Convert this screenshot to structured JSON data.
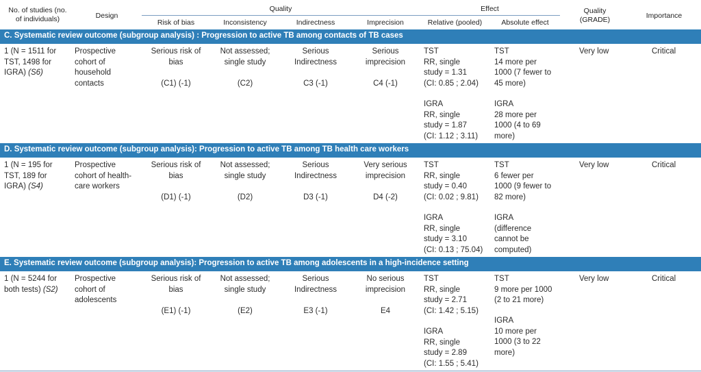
{
  "header": {
    "studies": [
      "No. of studies (no.",
      "of individuals)"
    ],
    "design": "Design",
    "quality": "Quality",
    "effect": "Effect",
    "risk_of_bias": "Risk of bias",
    "inconsistency": "Inconsistency",
    "indirectness": "Indirectness",
    "imprecision": "Imprecision",
    "relative": "Relative (pooled)",
    "absolute": "Absolute effect",
    "grade": [
      "Quality",
      "(GRADE)"
    ],
    "importance": "Importance"
  },
  "sections": [
    {
      "title": "C. Systematic review outcome (subgroup analysis) : Progression to active TB among contacts of TB cases",
      "studies": [
        "1 (N = 1511 for",
        "TST, 1498 for",
        "IGRA) "
      ],
      "studies_ref": "(S6)",
      "design": [
        "Prospective",
        "cohort of",
        "household",
        "contacts"
      ],
      "risk_of_bias": [
        "Serious risk of",
        "bias"
      ],
      "risk_code": "(C1) (-1)",
      "inconsistency": [
        "Not assessed;",
        "single study"
      ],
      "inconsistency_code": "(C2)",
      "indirectness": [
        "Serious",
        "Indirectness"
      ],
      "indirectness_code": "C3 (-1)",
      "imprecision": [
        "Serious",
        "imprecision"
      ],
      "imprecision_code": "C4 (-1)",
      "relative_tst": [
        "TST",
        "RR, single",
        "study = 1.31",
        "(CI: 0.85 ; 2.04)"
      ],
      "relative_igra": [
        "IGRA",
        "RR, single",
        "study = 1.87",
        "(CI: 1.12 ; 3.11)"
      ],
      "absolute_tst": [
        "TST",
        "14 more per",
        "1000 (7 fewer to",
        "45 more)"
      ],
      "absolute_igra": [
        "IGRA",
        "28 more per",
        "1000 (4 to 69",
        "more)"
      ],
      "grade": "Very low",
      "importance": "Critical"
    },
    {
      "title": "D. Systematic review outcome (subgroup analysis): Progression to active TB among TB health care workers",
      "studies": [
        "1 (N = 195 for",
        "TST, 189 for",
        "IGRA) "
      ],
      "studies_ref": "(S4)",
      "design": [
        "Prospective",
        "cohort of health-",
        "care workers"
      ],
      "risk_of_bias": [
        "Serious risk of",
        "bias"
      ],
      "risk_code": "(D1) (-1)",
      "inconsistency": [
        "Not assessed;",
        "single study"
      ],
      "inconsistency_code": "(D2)",
      "indirectness": [
        "Serious",
        "Indirectness"
      ],
      "indirectness_code": "D3 (-1)",
      "imprecision": [
        "Very serious",
        "imprecision"
      ],
      "imprecision_code": "D4 (-2)",
      "relative_tst": [
        "TST",
        "RR, single",
        "study = 0.40",
        "(CI: 0.02 ; 9.81)"
      ],
      "relative_igra": [
        "IGRA",
        "RR, single",
        "study = 3.10",
        "(CI: 0.13 ; 75.04)"
      ],
      "absolute_tst": [
        "TST",
        "6 fewer per",
        "1000 (9 fewer to",
        "82 more)"
      ],
      "absolute_igra": [
        "IGRA",
        "(difference",
        "cannot be",
        "computed)"
      ],
      "grade": "Very low",
      "importance": "Critical"
    },
    {
      "title": "E. Systematic review outcome (subgroup analysis): Progression to active TB among adolescents in a high-incidence setting",
      "studies": [
        "1 (N = 5244 for",
        "both tests) "
      ],
      "studies_ref": "(S2)",
      "design": [
        "Prospective",
        "cohort of",
        "adolescents"
      ],
      "risk_of_bias": [
        "Serious risk of",
        "bias"
      ],
      "risk_code": "(E1) (-1)",
      "inconsistency": [
        "Not assessed;",
        "single study"
      ],
      "inconsistency_code": "(E2)",
      "indirectness": [
        "Serious",
        "Indirectness"
      ],
      "indirectness_code": "E3 (-1)",
      "imprecision": [
        "No serious",
        "imprecision"
      ],
      "imprecision_code": "E4",
      "relative_tst": [
        "TST",
        "RR, single",
        "study = 2.71",
        "(CI: 1.42 ; 5.15)"
      ],
      "relative_igra": [
        "IGRA",
        "RR, single",
        "study = 2.89",
        "(CI: 1.55 ; 5.41)"
      ],
      "absolute_tst": [
        "TST",
        "9 more per 1000",
        "(2 to 21 more)"
      ],
      "absolute_igra": [
        "IGRA",
        "10 more per",
        "1000 (3 to 22",
        "more)"
      ],
      "grade": "Very low",
      "importance": "Critical"
    }
  ],
  "colors": {
    "band": "#2f7fb8",
    "rule": "#7a9cc0"
  }
}
